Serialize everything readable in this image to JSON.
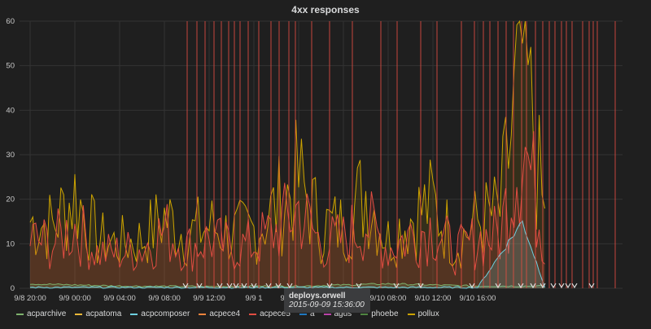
{
  "panel": {
    "title": "4xx responses"
  },
  "tooltip": {
    "title": "deploys.orwell",
    "time": "2015-09-09 15:36:00"
  },
  "legend": [
    {
      "name": "acparchive",
      "color": "#7eb26d"
    },
    {
      "name": "acpatoma",
      "color": "#eab839"
    },
    {
      "name": "acpcomposer",
      "color": "#6ed0e0"
    },
    {
      "name": "acpece4",
      "color": "#ef843c"
    },
    {
      "name": "acpece5",
      "color": "#e24d42"
    },
    {
      "name": "a",
      "color": "#1f78c1"
    },
    {
      "name": "agus",
      "color": "#ba43a9"
    },
    {
      "name": "phoebe",
      "color": "#508642"
    },
    {
      "name": "pollux",
      "color": "#cca300"
    }
  ],
  "chart_data": {
    "type": "line",
    "title": "4xx responses",
    "xlabel": "",
    "ylabel": "",
    "ylim": [
      0,
      60
    ],
    "yticks": [
      "0",
      "10",
      "20",
      "30",
      "40",
      "50",
      "60"
    ],
    "xticks": [
      "9/8 20:00",
      "9/9 00:00",
      "9/9 04:00",
      "9/9 08:00",
      "9/9 12:00",
      "9/9 1",
      "9/10 00:00",
      "9/10 04:00",
      "9/10 08:00",
      "9/10 12:00",
      "9/10 16:00"
    ],
    "grid": true,
    "legend_position": "bottom",
    "series": [
      {
        "name": "pollux",
        "color": "#cca300",
        "x": [
          "9/8 20:00",
          "9/8 22:00",
          "9/9 00:00",
          "9/9 02:00",
          "9/9 04:00",
          "9/9 06:00",
          "9/9 08:00",
          "9/9 10:00",
          "9/9 12:00",
          "9/9 14:00",
          "9/9 16:00",
          "9/9 18:00",
          "9/9 20:00",
          "9/9 22:00",
          "9/10 00:00",
          "9/10 02:00",
          "9/10 04:00",
          "9/10 06:00",
          "9/10 08:00",
          "9/10 10:00",
          "9/10 12:00",
          "9/10 14:00",
          "9/10 16:00",
          "9/10 18:00"
        ],
        "values": [
          15,
          14,
          21,
          11,
          10,
          11,
          16,
          12,
          14,
          12,
          13,
          18,
          24,
          14,
          14,
          22,
          11,
          16,
          19,
          10,
          15,
          17,
          52,
          15
        ]
      },
      {
        "name": "acpece5",
        "color": "#e24d42",
        "x": [
          "9/8 20:00",
          "9/8 22:00",
          "9/9 00:00",
          "9/9 02:00",
          "9/9 04:00",
          "9/9 06:00",
          "9/9 08:00",
          "9/9 10:00",
          "9/9 12:00",
          "9/9 14:00",
          "9/9 16:00",
          "9/9 18:00",
          "9/9 20:00",
          "9/9 22:00",
          "9/10 00:00",
          "9/10 02:00",
          "9/10 04:00",
          "9/10 06:00",
          "9/10 08:00",
          "9/10 10:00",
          "9/10 12:00",
          "9/10 14:00",
          "9/10 16:00",
          "9/10 18:00"
        ],
        "values": [
          11,
          10,
          14,
          8,
          8,
          9,
          13,
          9,
          11,
          9,
          10,
          13,
          18,
          10,
          11,
          15,
          9,
          12,
          14,
          8,
          11,
          12,
          35,
          10
        ]
      },
      {
        "name": "acparchive",
        "color": "#7eb26d",
        "x": [
          "9/8 20:00",
          "9/9 04:00",
          "9/9 12:00",
          "9/9 20:00",
          "9/10 04:00",
          "9/10 12:00",
          "9/10 16:00",
          "9/10 18:00"
        ],
        "values": [
          1,
          0.5,
          0.4,
          0.5,
          1,
          0.5,
          0.5,
          0.5
        ]
      },
      {
        "name": "acpcomposer",
        "color": "#6ed0e0",
        "x": [
          "9/8 20:00",
          "9/9 04:00",
          "9/9 12:00",
          "9/9 20:00",
          "9/10 04:00",
          "9/10 12:00",
          "9/10 16:00",
          "9/10 18:00"
        ],
        "values": [
          0.2,
          0.2,
          0.2,
          0.2,
          0.2,
          0.2,
          15,
          0.3
        ]
      }
    ],
    "annotations": {
      "name": "deploys.orwell",
      "color": "#e24d42"
    }
  }
}
